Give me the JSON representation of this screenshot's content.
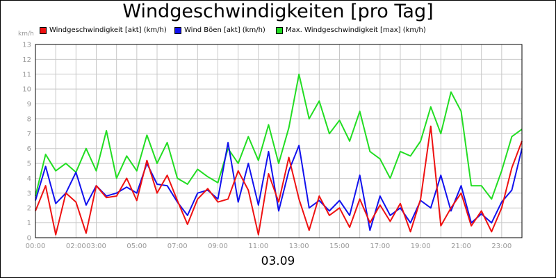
{
  "chart_data": {
    "type": "line",
    "title": "Windgeschwindigkeiten [pro Tag]",
    "ylabel": "km/h",
    "xlabel": "03.09",
    "ylim": [
      0,
      13
    ],
    "xlim": [
      0,
      24
    ],
    "yticks": [
      0,
      1,
      2,
      3,
      4,
      5,
      6,
      7,
      8,
      9,
      10,
      11,
      12,
      13
    ],
    "xticks": [
      {
        "x": 0,
        "label": "00:00"
      },
      {
        "x": 2,
        "label": "02:00"
      },
      {
        "x": 3,
        "label": "03:00"
      },
      {
        "x": 5,
        "label": "05:00"
      },
      {
        "x": 7,
        "label": "07:00"
      },
      {
        "x": 9,
        "label": "09:00"
      },
      {
        "x": 11,
        "label": "11:00"
      },
      {
        "x": 13,
        "label": "13:00"
      },
      {
        "x": 15,
        "label": "15:00"
      },
      {
        "x": 17,
        "label": "17:00"
      },
      {
        "x": 19,
        "label": "19:00"
      },
      {
        "x": 21,
        "label": "21:00"
      },
      {
        "x": 23,
        "label": "23:00"
      }
    ],
    "grid": true,
    "legend_position": "top-left",
    "x": [
      0,
      0.5,
      1,
      1.5,
      2,
      2.5,
      3,
      3.5,
      4,
      4.5,
      5,
      5.5,
      6,
      6.5,
      7,
      7.5,
      8,
      8.5,
      9,
      9.5,
      10,
      10.5,
      11,
      11.5,
      12,
      12.5,
      13,
      13.5,
      14,
      14.5,
      15,
      15.5,
      16,
      16.5,
      17,
      17.5,
      18,
      18.5,
      19,
      19.5,
      20,
      20.5,
      21,
      21.5,
      22,
      22.5,
      23,
      23.5,
      24
    ],
    "series": [
      {
        "name": "Windgeschwindigkeit [akt] (km/h)",
        "color": "#ee1111",
        "values": [
          1.8,
          3.5,
          0.2,
          3.0,
          2.4,
          0.3,
          3.5,
          2.7,
          2.8,
          4.0,
          2.5,
          5.2,
          3.0,
          4.2,
          2.5,
          0.9,
          2.6,
          3.3,
          2.4,
          2.6,
          4.5,
          3.2,
          0.2,
          4.3,
          2.4,
          5.4,
          2.6,
          0.5,
          2.8,
          1.5,
          2.0,
          0.7,
          2.6,
          1.0,
          2.2,
          1.1,
          2.3,
          0.4,
          2.6,
          7.5,
          0.8,
          2.0,
          3.0,
          0.8,
          1.8,
          0.4,
          2.0,
          4.7,
          6.5
        ]
      },
      {
        "name": "Wind Böen [akt] (km/h)",
        "color": "#1111ee",
        "values": [
          2.5,
          4.8,
          2.3,
          3.0,
          4.4,
          2.2,
          3.5,
          2.8,
          3.0,
          3.4,
          3.0,
          5.0,
          3.6,
          3.5,
          2.4,
          1.5,
          3.0,
          3.2,
          2.6,
          6.4,
          2.4,
          5.0,
          2.2,
          5.8,
          1.8,
          4.5,
          6.2,
          2.0,
          2.5,
          1.8,
          2.5,
          1.5,
          4.2,
          0.5,
          2.8,
          1.5,
          2.0,
          1.0,
          2.5,
          2.0,
          4.2,
          1.8,
          3.5,
          1.0,
          1.6,
          1.0,
          2.4,
          3.2,
          6.0
        ]
      },
      {
        "name": "Max. Windgeschwindigkeit [max] (km/h)",
        "color": "#22dd22",
        "values": [
          2.8,
          5.6,
          4.5,
          5.0,
          4.4,
          6.0,
          4.5,
          7.2,
          4.0,
          5.5,
          4.5,
          6.9,
          5.0,
          6.4,
          4.0,
          3.6,
          4.6,
          4.1,
          3.7,
          6.0,
          5.0,
          6.8,
          5.2,
          7.6,
          5.0,
          7.4,
          11.0,
          8.0,
          9.2,
          7.0,
          7.9,
          6.5,
          8.5,
          5.8,
          5.3,
          4.0,
          5.8,
          5.5,
          6.5,
          8.8,
          7.0,
          9.8,
          8.5,
          3.5,
          3.5,
          2.6,
          4.5,
          6.8,
          7.3
        ]
      }
    ]
  }
}
